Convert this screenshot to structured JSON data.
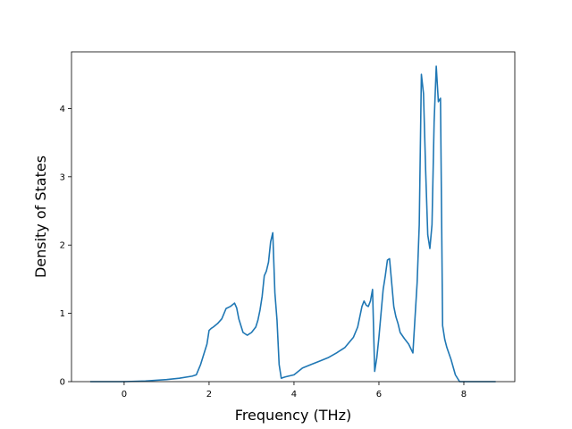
{
  "chart_data": {
    "type": "line",
    "title": "",
    "xlabel": "Frequency (THz)",
    "ylabel": "Density of States",
    "xlim": [
      -1.24,
      9.2
    ],
    "ylim": [
      0,
      4.83
    ],
    "xticks": [
      0,
      2,
      4,
      6,
      8
    ],
    "yticks": [
      0,
      1,
      2,
      3,
      4
    ],
    "grid": false,
    "legend": "none",
    "line_color": "#1f77b4",
    "series": [
      {
        "name": "",
        "x": [
          -0.8,
          0.0,
          0.5,
          1.0,
          1.3,
          1.6,
          1.7,
          1.8,
          1.9,
          1.95,
          2.0,
          2.05,
          2.1,
          2.2,
          2.3,
          2.4,
          2.5,
          2.6,
          2.65,
          2.7,
          2.75,
          2.8,
          2.9,
          3.0,
          3.1,
          3.15,
          3.2,
          3.25,
          3.3,
          3.35,
          3.4,
          3.45,
          3.5,
          3.55,
          3.6,
          3.65,
          3.7,
          3.75,
          3.8,
          4.0,
          4.2,
          4.4,
          4.6,
          4.8,
          5.0,
          5.2,
          5.4,
          5.5,
          5.6,
          5.65,
          5.7,
          5.75,
          5.8,
          5.85,
          5.9,
          5.95,
          6.0,
          6.05,
          6.1,
          6.15,
          6.2,
          6.25,
          6.3,
          6.35,
          6.4,
          6.45,
          6.5,
          6.6,
          6.7,
          6.8,
          6.9,
          6.95,
          7.0,
          7.05,
          7.1,
          7.15,
          7.2,
          7.25,
          7.3,
          7.35,
          7.4,
          7.45,
          7.5,
          7.55,
          7.6,
          7.7,
          7.8,
          7.9,
          7.95,
          8.0,
          8.4,
          8.75
        ],
        "y": [
          0.0,
          0.0,
          0.01,
          0.03,
          0.05,
          0.08,
          0.1,
          0.25,
          0.45,
          0.55,
          0.75,
          0.78,
          0.8,
          0.85,
          0.92,
          1.07,
          1.1,
          1.15,
          1.08,
          0.92,
          0.82,
          0.72,
          0.68,
          0.72,
          0.8,
          0.9,
          1.05,
          1.25,
          1.55,
          1.62,
          1.75,
          2.05,
          2.18,
          1.3,
          0.9,
          0.25,
          0.05,
          0.06,
          0.07,
          0.1,
          0.2,
          0.25,
          0.3,
          0.35,
          0.42,
          0.5,
          0.65,
          0.8,
          1.1,
          1.18,
          1.12,
          1.1,
          1.18,
          1.35,
          0.15,
          0.35,
          0.65,
          1.0,
          1.35,
          1.55,
          1.78,
          1.8,
          1.45,
          1.1,
          0.95,
          0.85,
          0.72,
          0.63,
          0.55,
          0.42,
          1.45,
          2.3,
          4.5,
          4.22,
          3.1,
          2.15,
          1.95,
          2.3,
          3.8,
          4.62,
          4.1,
          4.15,
          0.82,
          0.62,
          0.5,
          0.32,
          0.1,
          0.0,
          0.0,
          0.0,
          0.0,
          0.0
        ]
      }
    ]
  }
}
